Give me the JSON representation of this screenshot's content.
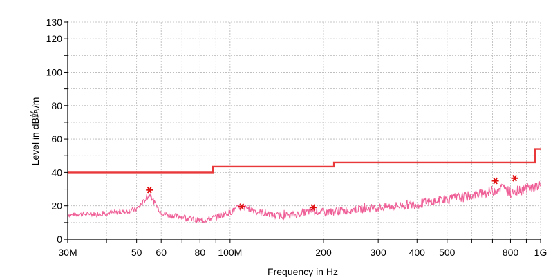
{
  "chart_data": {
    "type": "line",
    "xlabel": "Frequency in Hz",
    "ylabel": "Level in dB竘/m",
    "x_scale": "log",
    "xlim": [
      30000000,
      1000000000
    ],
    "ylim": [
      0,
      130
    ],
    "grid": true,
    "x_ticks": [
      {
        "value": 30000000,
        "label": "30M"
      },
      {
        "value": 40000000,
        "label": ""
      },
      {
        "value": 50000000,
        "label": "50"
      },
      {
        "value": 60000000,
        "label": "60"
      },
      {
        "value": 70000000,
        "label": ""
      },
      {
        "value": 80000000,
        "label": "80"
      },
      {
        "value": 90000000,
        "label": ""
      },
      {
        "value": 100000000,
        "label": "100M"
      },
      {
        "value": 200000000,
        "label": "200"
      },
      {
        "value": 300000000,
        "label": "300"
      },
      {
        "value": 400000000,
        "label": "400"
      },
      {
        "value": 500000000,
        "label": "500"
      },
      {
        "value": 600000000,
        "label": ""
      },
      {
        "value": 700000000,
        "label": ""
      },
      {
        "value": 800000000,
        "label": "800"
      },
      {
        "value": 900000000,
        "label": ""
      },
      {
        "value": 1000000000,
        "label": "1G"
      }
    ],
    "y_ticks": [
      {
        "value": 0,
        "label": "0"
      },
      {
        "value": 20,
        "label": "20"
      },
      {
        "value": 40,
        "label": "40"
      },
      {
        "value": 60,
        "label": "60"
      },
      {
        "value": 80,
        "label": "80"
      },
      {
        "value": 100,
        "label": "100"
      },
      {
        "value": 120,
        "label": "120"
      },
      {
        "value": 130,
        "label": "130"
      }
    ],
    "colors": {
      "limit": "#e8383a",
      "trace": "#ef5f97",
      "marker": "#e01010"
    },
    "limit_line": {
      "x": [
        30000000,
        88000000,
        88000000,
        216000000,
        216000000,
        960000000,
        960000000,
        1000000000
      ],
      "y": [
        40,
        40,
        43.5,
        43.5,
        46,
        46,
        54,
        54
      ]
    },
    "measurement": {
      "x": [
        30000000,
        33000000,
        36000000,
        40000000,
        43000000,
        46000000,
        50000000,
        53000000,
        55000000,
        57000000,
        60000000,
        65000000,
        70000000,
        75000000,
        80000000,
        85000000,
        90000000,
        95000000,
        100000000,
        107000000,
        115000000,
        125000000,
        140000000,
        160000000,
        185000000,
        200000000,
        230000000,
        260000000,
        300000000,
        350000000,
        400000000,
        450000000,
        500000000,
        550000000,
        600000000,
        650000000,
        700000000,
        750000000,
        800000000,
        850000000,
        900000000,
        950000000,
        1000000000
      ],
      "y": [
        14.5,
        15,
        15,
        15.5,
        16,
        16.5,
        18,
        23,
        27,
        22,
        16,
        14,
        13.5,
        12,
        11,
        12,
        13,
        15,
        16,
        19,
        18.5,
        16,
        14,
        14.5,
        17,
        16,
        17,
        18,
        19,
        20,
        21,
        22.5,
        24,
        25,
        26,
        27.5,
        29,
        31,
        28,
        29.5,
        30.5,
        31,
        31.5
      ]
    },
    "peaks": [
      {
        "x": 55000000,
        "y": 29.5
      },
      {
        "x": 109000000,
        "y": 19.5
      },
      {
        "x": 185000000,
        "y": 19
      },
      {
        "x": 715000000,
        "y": 35
      },
      {
        "x": 825000000,
        "y": 36.5
      }
    ]
  }
}
